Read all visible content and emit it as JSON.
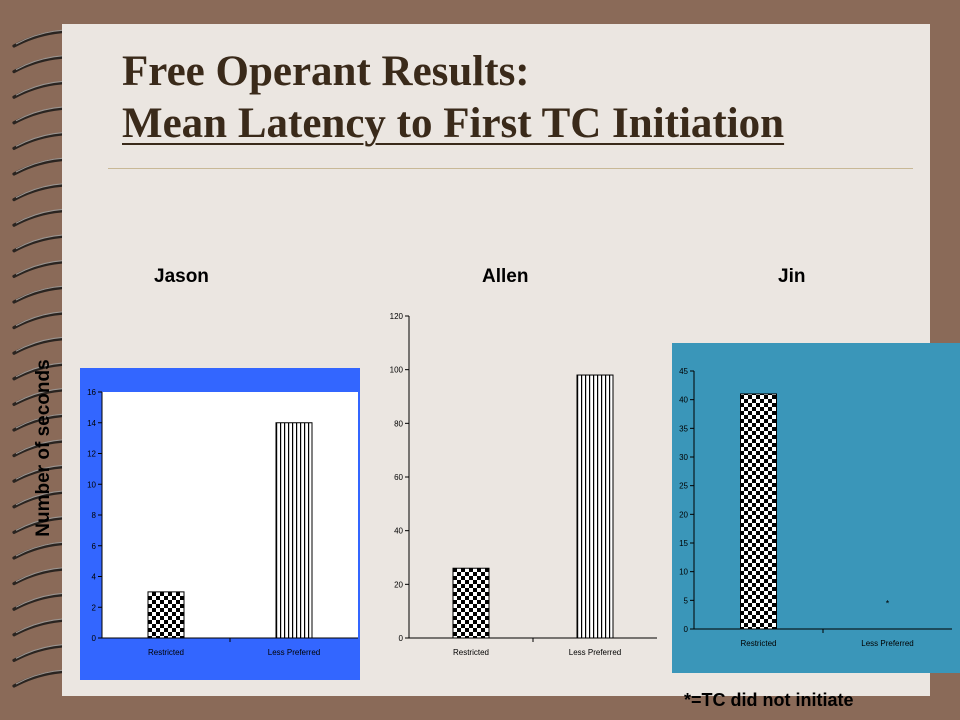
{
  "slide": {
    "title_line1": "Free Operant Results:",
    "title_line2": "Mean Latency to First TC Initiation",
    "y_axis_label": "Number of seconds",
    "footnote": "*=TC did not initiate"
  },
  "colors": {
    "jason_panel": "#3366ff",
    "jin_panel": "#3a96b9",
    "allen_panel": "#ebe6e1"
  },
  "chart_data": [
    {
      "type": "bar",
      "participant": "Jason",
      "categories": [
        "Restricted",
        "Less Preferred"
      ],
      "values": [
        3,
        14
      ],
      "ylim": [
        0,
        16
      ],
      "yticks": [
        0,
        2,
        4,
        6,
        8,
        10,
        12,
        14,
        16
      ],
      "annotations": []
    },
    {
      "type": "bar",
      "participant": "Allen",
      "categories": [
        "Restricted",
        "Less Preferred"
      ],
      "values": [
        26,
        98
      ],
      "ylim": [
        0,
        120
      ],
      "yticks": [
        0,
        20,
        40,
        60,
        80,
        100,
        120
      ],
      "annotations": []
    },
    {
      "type": "bar",
      "participant": "Jin",
      "categories": [
        "Restricted",
        "Less Preferred"
      ],
      "values": [
        41,
        0
      ],
      "ylim": [
        0,
        45
      ],
      "yticks": [
        0,
        5,
        10,
        15,
        20,
        25,
        30,
        35,
        40,
        45
      ],
      "annotations": [
        "*"
      ]
    }
  ]
}
